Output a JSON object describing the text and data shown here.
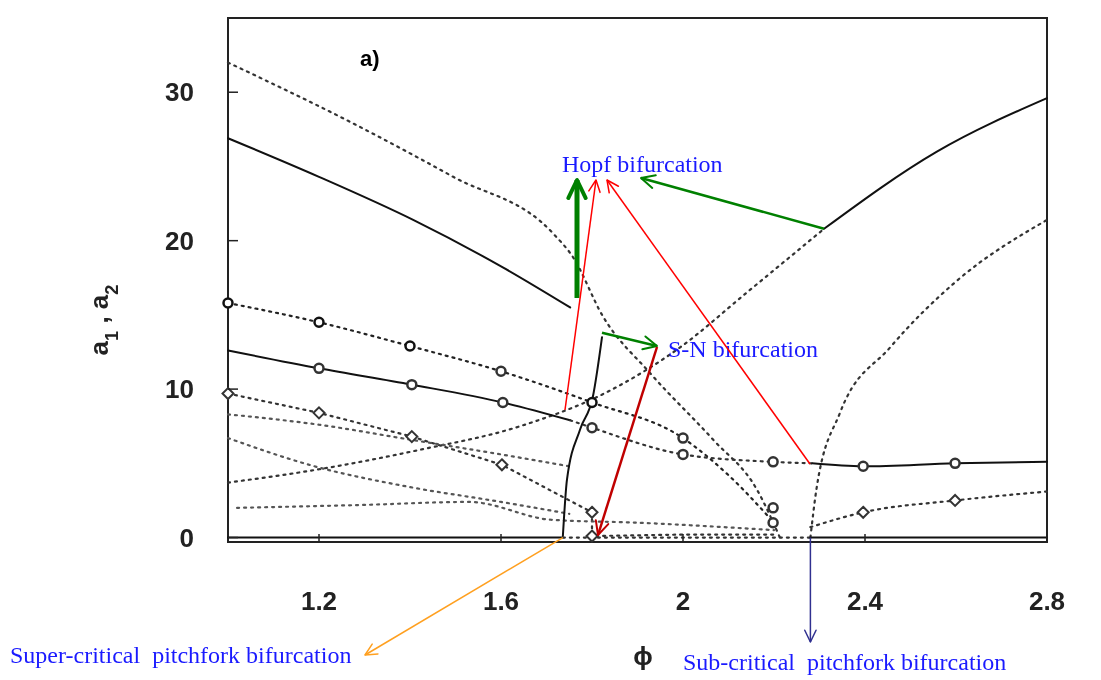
{
  "chart_data": {
    "type": "line",
    "xlabel": "ϕ",
    "ylabel": "a$_{1}$ , a$_{2}$",
    "xlim": [
      1.0,
      2.8
    ],
    "ylim": [
      -0.3,
      35
    ],
    "xticks": [
      1.2,
      1.6,
      2,
      2.4,
      2.8
    ],
    "yticks": [
      0,
      10,
      20,
      30
    ],
    "annotations": [
      "a)",
      {
        "text": "Hopf bifurcation",
        "x": 2.31,
        "y": 20.8
      },
      {
        "text": "S-N bifurcation",
        "x": 1.822,
        "y": 13.8
      },
      {
        "text": "Super-critical  pitchfork bifurcation",
        "x": 1.736,
        "y": 0
      },
      {
        "text": "Sub-critical  pitchfork bifurcation",
        "x": 2.28,
        "y": 0
      }
    ],
    "series": [
      {
        "line_style": "dotted",
        "color": "#333333",
        "x": [
          1.0,
          1.275,
          1.495,
          1.714,
          1.758,
          1.824,
          1.927,
          2.066,
          2.163,
          2.213
        ],
        "values": [
          32,
          27.9,
          24.3,
          20.5,
          18.9,
          14.9,
          11.1,
          6.6,
          3.2,
          0
        ]
      },
      {
        "line_style": "solid",
        "color": "#111111",
        "x": [
          1.0,
          1.2,
          1.407,
          1.604,
          1.752
        ],
        "values": [
          26.9,
          24.3,
          21.4,
          18.2,
          15.5
        ]
      },
      {
        "line_style": "solid",
        "color": "#111111",
        "x": [
          2.31,
          2.558,
          2.8
        ],
        "values": [
          20.8,
          26.0,
          29.6
        ]
      },
      {
        "line_style": "dotted",
        "color": "#333333",
        "x": [
          1.0,
          1.2,
          1.42,
          1.642,
          1.833,
          1.993,
          2.14,
          2.31
        ],
        "values": [
          3.7,
          4.6,
          5.9,
          7.5,
          9.8,
          12.8,
          16.5,
          20.8
        ]
      },
      {
        "line_style": "dotted",
        "color": "#333333",
        "x": [
          2.28,
          2.294,
          2.345,
          2.455,
          2.602,
          2.8
        ],
        "values": [
          0,
          3.4,
          8.4,
          12.8,
          17.3,
          21.4
        ]
      },
      {
        "line_style": "dotted",
        "color": "#222222",
        "x": [
          1.0,
          1.2,
          1.4,
          1.6,
          1.8,
          2.0,
          2.1,
          2.2
        ],
        "values": [
          15.8,
          14.5,
          12.9,
          11.2,
          9.1,
          6.7,
          4.2,
          1.0
        ]
      },
      {
        "line_style": "solid",
        "color": "#111111",
        "x": [
          1.0,
          1.2,
          1.404,
          1.604,
          1.752
        ],
        "values": [
          12.6,
          11.4,
          10.3,
          9.1,
          7.9
        ]
      },
      {
        "line_style": "dotted",
        "color": "#333333",
        "x": [
          1.752,
          1.8,
          2.0,
          2.198,
          2.284
        ],
        "values": [
          7.9,
          7.4,
          5.6,
          5.1,
          5.0
        ]
      },
      {
        "line_style": "solid",
        "color": "#111111",
        "x": [
          2.284,
          2.396,
          2.598,
          2.8
        ],
        "values": [
          5.0,
          4.8,
          5.0,
          5.1
        ]
      },
      {
        "line_style": "dotted",
        "color": "#333333",
        "x": [
          1.0,
          1.2,
          1.404,
          1.602,
          1.8,
          1.8,
          2.0,
          2.2
        ],
        "values": [
          9.7,
          8.4,
          6.8,
          4.9,
          1.7,
          0.1,
          0.2,
          0.2
        ]
      },
      {
        "line_style": "dotted",
        "color": "#333333",
        "x": [
          2.28,
          2.396,
          2.598,
          2.8
        ],
        "values": [
          0.7,
          1.7,
          2.5,
          3.1
        ]
      },
      {
        "line_style": "dotted",
        "color": "#555555",
        "x": [
          1.0,
          1.2,
          1.4,
          1.6,
          1.75
        ],
        "values": [
          8.3,
          7.6,
          6.6,
          5.6,
          4.8
        ]
      },
      {
        "line_style": "dotted",
        "color": "#555555",
        "x": [
          1.0,
          1.19,
          1.4,
          1.6,
          1.75
        ],
        "values": [
          6.7,
          4.8,
          3.4,
          2.4,
          1.6
        ]
      },
      {
        "line_style": "dotted",
        "color": "#555555",
        "x": [
          1.02,
          1.3,
          1.53,
          1.71,
          1.9,
          2.2
        ],
        "values": [
          2.0,
          2.2,
          2.4,
          1.2,
          1.0,
          0.5
        ]
      },
      {
        "line_style": "solid",
        "color": "#111111",
        "x": [
          1.736,
          1.745,
          1.774,
          1.802,
          1.822
        ],
        "values": [
          0.1,
          3.9,
          7.3,
          9.5,
          13.5
        ]
      },
      {
        "line_style": "solid",
        "color": "#111111",
        "x": [
          1.0,
          1.736
        ],
        "values": [
          0,
          0
        ]
      },
      {
        "line_style": "dotted",
        "color": "#333333",
        "x": [
          1.736,
          2.28
        ],
        "values": [
          0,
          0
        ]
      },
      {
        "line_style": "solid",
        "color": "#111111",
        "x": [
          2.28,
          2.8
        ],
        "values": [
          0,
          0
        ]
      },
      {
        "type": "scatter",
        "marker": "circle",
        "color": "#111111",
        "x": [
          1.0,
          1.2,
          1.4,
          1.8
        ],
        "values": [
          15.8,
          14.5,
          12.9,
          9.1
        ]
      },
      {
        "type": "scatter",
        "marker": "circle",
        "color": "#333333",
        "x": [
          1.6,
          2.0,
          2.198,
          2.198,
          1.2,
          1.404,
          1.604,
          1.8,
          2.0,
          2.198,
          2.396,
          2.598
        ],
        "values": [
          11.2,
          6.7,
          2.0,
          1.0,
          11.4,
          10.3,
          9.1,
          7.4,
          5.6,
          5.1,
          4.8,
          5.0
        ]
      },
      {
        "type": "scatter",
        "marker": "diamond",
        "color": "#333333",
        "x": [
          1.0,
          1.2,
          1.404,
          1.602,
          1.8,
          1.8,
          2.396,
          2.598
        ],
        "values": [
          9.7,
          8.4,
          6.8,
          4.9,
          1.7,
          0.1,
          1.7,
          2.5
        ]
      }
    ]
  }
}
